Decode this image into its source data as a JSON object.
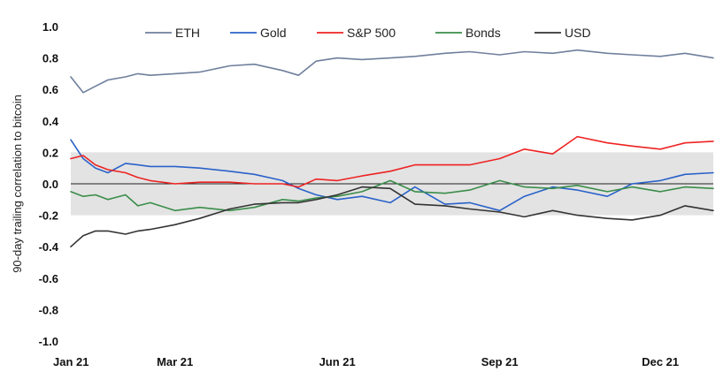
{
  "chart_data": {
    "type": "line",
    "title": "",
    "xlabel": "",
    "ylabel": "90-day trailing correlation to bitcoin",
    "ylim": [
      -1.0,
      1.0
    ],
    "y_ticks": [
      "1.0",
      "0.8",
      "0.6",
      "0.4",
      "0.2",
      "0.0",
      "-0.2",
      "-0.4",
      "-0.6",
      "-0.8",
      "-1.0"
    ],
    "x_ticks": [
      {
        "label": "Jan 21",
        "date": "2021-01-01"
      },
      {
        "label": "Mar 21",
        "date": "2021-03-01"
      },
      {
        "label": "Jun 21",
        "date": "2021-06-01"
      },
      {
        "label": "Sep 21",
        "date": "2021-09-01"
      },
      {
        "label": "Dec 21",
        "date": "2021-12-01"
      }
    ],
    "band": [
      -0.2,
      0.2
    ],
    "zero_line": true,
    "grid": false,
    "legend": "top",
    "x": [
      "2021-01-01",
      "2021-01-08",
      "2021-01-15",
      "2021-01-22",
      "2021-02-01",
      "2021-02-08",
      "2021-02-15",
      "2021-03-01",
      "2021-03-15",
      "2021-04-01",
      "2021-04-15",
      "2021-05-01",
      "2021-05-10",
      "2021-05-20",
      "2021-06-01",
      "2021-06-15",
      "2021-07-01",
      "2021-07-15",
      "2021-08-01",
      "2021-08-15",
      "2021-09-01",
      "2021-09-15",
      "2021-10-01",
      "2021-10-15",
      "2021-11-01",
      "2021-11-15",
      "2021-12-01",
      "2021-12-15",
      "2021-12-31"
    ],
    "series": [
      {
        "name": "ETH",
        "color": "#6f7f9c",
        "values": [
          0.68,
          0.58,
          0.62,
          0.66,
          0.68,
          0.7,
          0.69,
          0.7,
          0.71,
          0.75,
          0.76,
          0.72,
          0.69,
          0.78,
          0.8,
          0.79,
          0.8,
          0.81,
          0.83,
          0.84,
          0.82,
          0.84,
          0.83,
          0.85,
          0.83,
          0.82,
          0.81,
          0.83,
          0.8
        ]
      },
      {
        "name": "Gold",
        "color": "#2a62c9",
        "values": [
          0.28,
          0.16,
          0.1,
          0.07,
          0.13,
          0.12,
          0.11,
          0.11,
          0.1,
          0.08,
          0.06,
          0.02,
          -0.03,
          -0.07,
          -0.1,
          -0.08,
          -0.12,
          -0.02,
          -0.13,
          -0.12,
          -0.17,
          -0.08,
          -0.02,
          -0.04,
          -0.08,
          0.0,
          0.02,
          0.06,
          0.07
        ]
      },
      {
        "name": "S&P 500",
        "color": "#ee2222",
        "values": [
          0.16,
          0.18,
          0.12,
          0.09,
          0.07,
          0.04,
          0.02,
          0.0,
          0.01,
          0.01,
          0.0,
          0.0,
          -0.02,
          0.03,
          0.02,
          0.05,
          0.08,
          0.12,
          0.12,
          0.12,
          0.16,
          0.22,
          0.19,
          0.3,
          0.26,
          0.24,
          0.22,
          0.26,
          0.27
        ]
      },
      {
        "name": "Bonds",
        "color": "#3a8d4a",
        "values": [
          -0.05,
          -0.08,
          -0.07,
          -0.1,
          -0.07,
          -0.14,
          -0.12,
          -0.17,
          -0.15,
          -0.17,
          -0.15,
          -0.1,
          -0.11,
          -0.09,
          -0.08,
          -0.05,
          0.02,
          -0.05,
          -0.06,
          -0.04,
          0.02,
          -0.02,
          -0.03,
          -0.01,
          -0.05,
          -0.02,
          -0.05,
          -0.02,
          -0.03
        ]
      },
      {
        "name": "USD",
        "color": "#333333",
        "values": [
          -0.4,
          -0.33,
          -0.3,
          -0.3,
          -0.32,
          -0.3,
          -0.29,
          -0.26,
          -0.22,
          -0.16,
          -0.13,
          -0.12,
          -0.12,
          -0.1,
          -0.07,
          -0.02,
          -0.03,
          -0.13,
          -0.14,
          -0.16,
          -0.18,
          -0.21,
          -0.17,
          -0.2,
          -0.22,
          -0.23,
          -0.2,
          -0.14,
          -0.17
        ]
      }
    ]
  }
}
